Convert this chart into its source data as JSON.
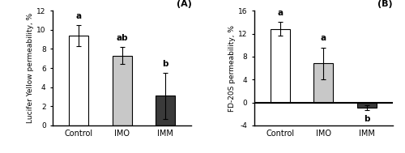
{
  "panel_A": {
    "title": "(A)",
    "ylabel": "Lucifer Yellow permeability, %",
    "categories": [
      "Control",
      "IMO",
      "IMM"
    ],
    "values": [
      9.4,
      7.3,
      3.1
    ],
    "errors": [
      1.1,
      0.9,
      2.4
    ],
    "letters": [
      "a",
      "ab",
      "b"
    ],
    "bar_colors": [
      "#ffffff",
      "#c8c8c8",
      "#3a3a3a"
    ],
    "bar_edgecolor": "#000000",
    "ylim": [
      0,
      12
    ],
    "yticks": [
      0,
      2,
      4,
      6,
      8,
      10,
      12
    ]
  },
  "panel_B": {
    "title": "(B)",
    "ylabel": "FD-20S permeability, %",
    "categories": [
      "Control",
      "IMO",
      "IMM"
    ],
    "values": [
      12.8,
      6.8,
      -0.9
    ],
    "errors": [
      1.2,
      2.8,
      0.4
    ],
    "letters": [
      "a",
      "a",
      "b"
    ],
    "bar_colors": [
      "#ffffff",
      "#c8c8c8",
      "#3a3a3a"
    ],
    "bar_edgecolor": "#000000",
    "ylim": [
      -4,
      16
    ],
    "yticks": [
      -4,
      0,
      4,
      8,
      12,
      16
    ]
  },
  "background_color": "#ffffff",
  "bar_width": 0.45,
  "fontsize_ylabel": 6.5,
  "fontsize_letters": 7.5,
  "fontsize_title": 8,
  "fontsize_ticks": 6.5,
  "fontsize_xticklabels": 7
}
